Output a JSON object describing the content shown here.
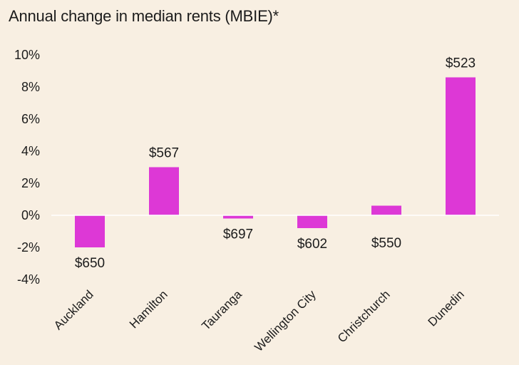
{
  "chart_data": {
    "type": "bar",
    "title": "Annual change in median rents (MBIE)*",
    "xlabel": "",
    "ylabel": "",
    "categories": [
      "Auckland",
      "Hamilton",
      "Tauranga",
      "Wellington City",
      "Christchurch",
      "Dunedin"
    ],
    "values": [
      -2.0,
      3.0,
      -0.2,
      -0.8,
      0.6,
      8.6
    ],
    "data_labels": [
      "$650",
      "$567",
      "$697",
      "$602",
      "$550",
      "$523"
    ],
    "ylim": [
      -4,
      10
    ],
    "yticks": [
      -4,
      -2,
      0,
      2,
      4,
      6,
      8,
      10
    ],
    "ytick_labels": [
      "-4%",
      "-2%",
      "0%",
      "2%",
      "4%",
      "6%",
      "8%",
      "10%"
    ],
    "grid": false,
    "legend": "none"
  },
  "colors": {
    "bar": "#dd38d6",
    "background": "#f8efe2",
    "zero_line": "#ffffff",
    "text": "#1c1c1c"
  }
}
